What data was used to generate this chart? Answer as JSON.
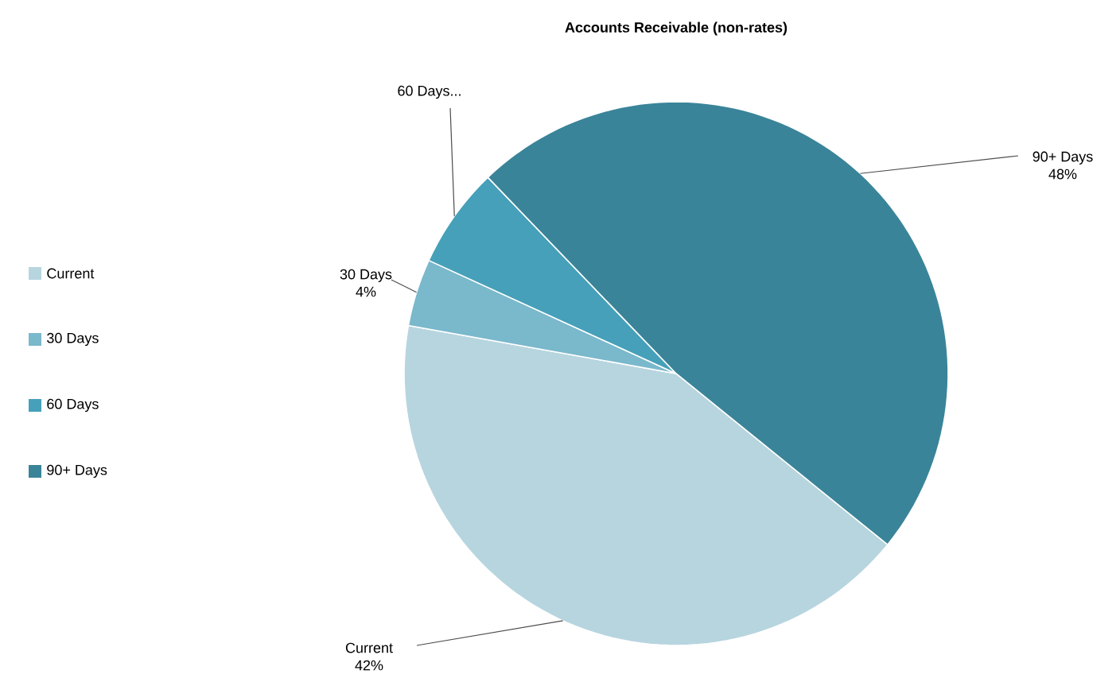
{
  "chart_data": {
    "type": "pie",
    "title": "Accounts Receivable (non-rates)",
    "categories": [
      "Current",
      "30 Days",
      "60 Days",
      "90+ Days"
    ],
    "values": [
      42,
      4,
      6,
      48
    ],
    "value_labels": [
      "42%",
      "4%",
      null,
      "48%"
    ],
    "colors": [
      "#b7d5df",
      "#7ab8cc",
      "#46a0b9",
      "#3a8499"
    ],
    "annotations": [
      {
        "text": "60 Days...",
        "x": "60 Days"
      }
    ],
    "legend": "left"
  }
}
